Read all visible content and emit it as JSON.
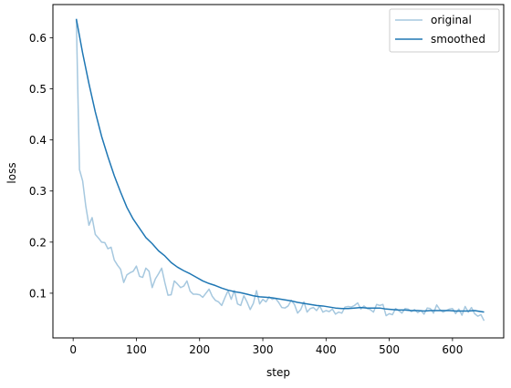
{
  "chart_data": {
    "type": "line",
    "title": "",
    "xlabel": "step",
    "ylabel": "loss",
    "xlim": [
      -32,
      681
    ],
    "ylim": [
      0.0125,
      0.665
    ],
    "xticks": [
      0,
      100,
      200,
      300,
      400,
      500,
      600
    ],
    "yticks": [
      0.1,
      0.2,
      0.3,
      0.4,
      0.5,
      0.6
    ],
    "grid": false,
    "legend": "upper-right",
    "series": [
      {
        "name": "original",
        "color": "#a6c8df",
        "x": [
          5,
          10,
          15,
          20,
          25,
          30,
          35,
          40,
          45,
          50,
          55,
          60,
          65,
          70,
          75,
          80,
          85,
          90,
          95,
          100,
          105,
          110,
          115,
          120,
          125,
          130,
          135,
          140,
          145,
          150,
          155,
          160,
          165,
          170,
          175,
          180,
          185,
          190,
          195,
          200,
          205,
          210,
          215,
          220,
          225,
          230,
          235,
          240,
          245,
          250,
          255,
          260,
          265,
          270,
          275,
          280,
          285,
          290,
          295,
          300,
          305,
          310,
          315,
          320,
          325,
          330,
          335,
          340,
          345,
          350,
          355,
          360,
          365,
          370,
          375,
          380,
          385,
          390,
          395,
          400,
          405,
          410,
          415,
          420,
          425,
          430,
          435,
          440,
          445,
          450,
          455,
          460,
          465,
          470,
          475,
          480,
          485,
          490,
          495,
          500,
          505,
          510,
          515,
          520,
          525,
          530,
          535,
          540,
          545,
          550,
          555,
          560,
          565,
          570,
          575,
          580,
          585,
          590,
          595,
          600,
          605,
          610,
          615,
          620,
          625,
          630,
          635,
          640,
          645,
          650
        ],
        "values": [
          0.637,
          0.342,
          0.32,
          0.27,
          0.233,
          0.248,
          0.215,
          0.208,
          0.2,
          0.199,
          0.187,
          0.19,
          0.165,
          0.155,
          0.147,
          0.121,
          0.136,
          0.14,
          0.143,
          0.153,
          0.133,
          0.131,
          0.149,
          0.143,
          0.111,
          0.128,
          0.138,
          0.149,
          0.121,
          0.096,
          0.097,
          0.124,
          0.118,
          0.111,
          0.114,
          0.124,
          0.104,
          0.098,
          0.098,
          0.097,
          0.092,
          0.1,
          0.108,
          0.094,
          0.086,
          0.083,
          0.076,
          0.091,
          0.105,
          0.088,
          0.105,
          0.079,
          0.076,
          0.095,
          0.083,
          0.068,
          0.08,
          0.105,
          0.079,
          0.088,
          0.083,
          0.093,
          0.088,
          0.09,
          0.082,
          0.072,
          0.071,
          0.075,
          0.086,
          0.078,
          0.061,
          0.068,
          0.083,
          0.063,
          0.07,
          0.072,
          0.066,
          0.075,
          0.063,
          0.066,
          0.064,
          0.069,
          0.059,
          0.063,
          0.061,
          0.073,
          0.074,
          0.073,
          0.076,
          0.081,
          0.069,
          0.075,
          0.07,
          0.068,
          0.063,
          0.078,
          0.076,
          0.078,
          0.056,
          0.06,
          0.058,
          0.07,
          0.066,
          0.061,
          0.07,
          0.069,
          0.064,
          0.068,
          0.062,
          0.066,
          0.059,
          0.071,
          0.07,
          0.061,
          0.077,
          0.068,
          0.063,
          0.066,
          0.069,
          0.07,
          0.06,
          0.069,
          0.057,
          0.074,
          0.063,
          0.072,
          0.06,
          0.055,
          0.058,
          0.046
        ]
      },
      {
        "name": "smoothed",
        "color": "#1f77b4",
        "x": [
          5,
          15,
          25,
          35,
          45,
          55,
          65,
          75,
          85,
          95,
          105,
          115,
          125,
          135,
          145,
          155,
          165,
          175,
          185,
          195,
          205,
          215,
          225,
          235,
          245,
          255,
          265,
          275,
          285,
          295,
          305,
          315,
          325,
          335,
          345,
          355,
          365,
          375,
          385,
          395,
          405,
          415,
          425,
          435,
          445,
          455,
          465,
          475,
          485,
          495,
          505,
          515,
          525,
          535,
          545,
          555,
          565,
          575,
          585,
          595,
          605,
          615,
          625,
          635,
          645,
          650
        ],
        "values": [
          0.637,
          0.57,
          0.51,
          0.455,
          0.407,
          0.367,
          0.33,
          0.298,
          0.268,
          0.245,
          0.227,
          0.209,
          0.197,
          0.183,
          0.173,
          0.16,
          0.151,
          0.144,
          0.138,
          0.131,
          0.124,
          0.119,
          0.115,
          0.11,
          0.106,
          0.103,
          0.101,
          0.098,
          0.095,
          0.093,
          0.092,
          0.091,
          0.089,
          0.087,
          0.085,
          0.082,
          0.08,
          0.078,
          0.076,
          0.075,
          0.073,
          0.071,
          0.07,
          0.07,
          0.071,
          0.072,
          0.071,
          0.071,
          0.071,
          0.069,
          0.068,
          0.067,
          0.067,
          0.066,
          0.066,
          0.065,
          0.066,
          0.066,
          0.066,
          0.066,
          0.065,
          0.065,
          0.065,
          0.066,
          0.064,
          0.063
        ]
      }
    ]
  }
}
